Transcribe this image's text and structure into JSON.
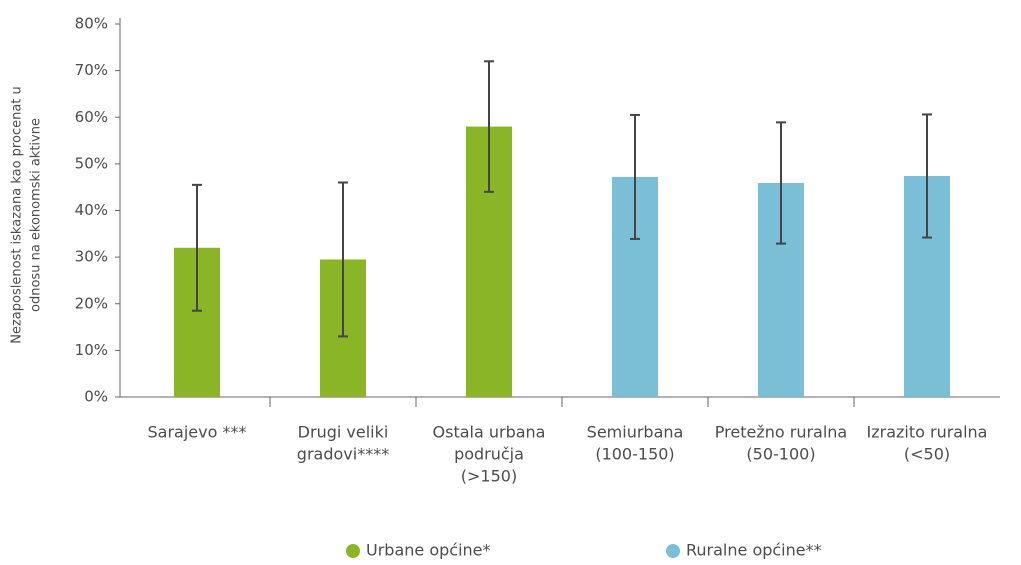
{
  "chart_data": {
    "type": "bar",
    "y_label": [
      "Nezaposlenost iskazana kao procenat u",
      "odnosu na ekonomski aktivne"
    ],
    "categories": [
      [
        "Sarajevo ***"
      ],
      [
        "Drugi veliki",
        "gradovi****"
      ],
      [
        "Ostala urbana",
        "područja",
        "(>150)"
      ],
      [
        "Semiurbana",
        "(100-150)"
      ],
      [
        "Pretežno ruralna",
        "(50-100)"
      ],
      [
        "Izrazito ruralna",
        "(<50)"
      ]
    ],
    "series": [
      {
        "name": "Urbane općine*",
        "color": "#8ab526",
        "values": [
          32,
          29.5,
          58,
          null,
          null,
          null
        ],
        "errors": [
          13.5,
          16.5,
          14,
          null,
          null,
          null
        ]
      },
      {
        "name": "Ruralne općine**",
        "color": "#7bbfd6",
        "values": [
          null,
          null,
          null,
          47.2,
          45.9,
          47.4
        ],
        "errors": [
          null,
          null,
          null,
          13.3,
          13,
          13.2
        ]
      }
    ],
    "ylim": [
      0,
      80
    ],
    "yticks": [
      {
        "value": 0,
        "label": "0%"
      },
      {
        "value": 10,
        "label": "10%"
      },
      {
        "value": 20,
        "label": "20%"
      },
      {
        "value": 30,
        "label": "30%"
      },
      {
        "value": 40,
        "label": "40%"
      },
      {
        "value": 50,
        "label": "50%"
      },
      {
        "value": 60,
        "label": "60%"
      },
      {
        "value": 70,
        "label": "70%"
      },
      {
        "value": 80,
        "label": "80%"
      }
    ],
    "legend": "bottom"
  }
}
